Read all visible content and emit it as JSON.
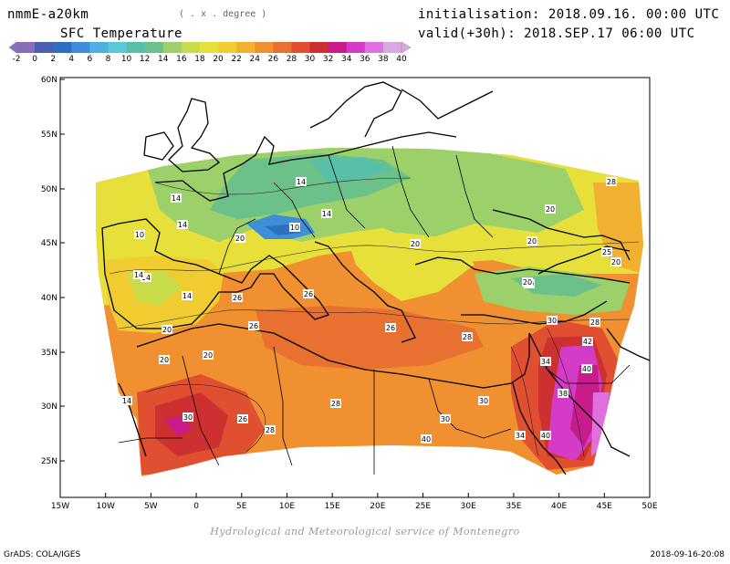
{
  "header": {
    "model": "nmmE-a20km",
    "units": "( . x . degree )",
    "init": "initialisation: 2018.09.16. 00:00 UTC",
    "valid": "valid(+30h): 2018.SEP.17 06:00 UTC",
    "field": "SFC Temperature"
  },
  "colorbar": {
    "labels": [
      "-2",
      "0",
      "2",
      "4",
      "6",
      "8",
      "10",
      "12",
      "14",
      "16",
      "18",
      "20",
      "22",
      "24",
      "26",
      "28",
      "30",
      "32",
      "34",
      "36",
      "38",
      "40"
    ],
    "colors": [
      "#8a6db8",
      "#4a5fb0",
      "#2f6fc0",
      "#3c8fd8",
      "#4db0e0",
      "#5ac8d8",
      "#58bfa8",
      "#6cc08a",
      "#9bd06a",
      "#c8dc4a",
      "#e8e03a",
      "#f0cc30",
      "#f2b030",
      "#f09030",
      "#e87030",
      "#e05030",
      "#cc3030",
      "#c81c8c",
      "#d43cc8",
      "#e070e0",
      "#d8a8e0"
    ]
  },
  "axes": {
    "x_ticks": [
      "15W",
      "10W",
      "5W",
      "0",
      "5E",
      "10E",
      "15E",
      "20E",
      "25E",
      "30E",
      "35E",
      "40E",
      "45E",
      "50E"
    ],
    "y_ticks": [
      "60N",
      "55N",
      "50N",
      "45N",
      "40N",
      "35N",
      "30N",
      "25N"
    ]
  },
  "contour_labels": [
    {
      "text": "14"
    },
    {
      "text": "14"
    },
    {
      "text": "10"
    },
    {
      "text": "20"
    },
    {
      "text": "14"
    },
    {
      "text": "10"
    },
    {
      "text": "14"
    },
    {
      "text": "14"
    },
    {
      "text": "20"
    },
    {
      "text": "20"
    },
    {
      "text": "20"
    },
    {
      "text": "28"
    },
    {
      "text": "20"
    },
    {
      "text": "25"
    },
    {
      "text": "20"
    },
    {
      "text": "14"
    },
    {
      "text": "14"
    },
    {
      "text": "26"
    },
    {
      "text": "26"
    },
    {
      "text": "20"
    },
    {
      "text": "20"
    },
    {
      "text": "20"
    },
    {
      "text": "26"
    },
    {
      "text": "26"
    },
    {
      "text": "28"
    },
    {
      "text": "30"
    },
    {
      "text": "28"
    },
    {
      "text": "42"
    },
    {
      "text": "40"
    },
    {
      "text": "34"
    },
    {
      "text": "20"
    },
    {
      "text": "14"
    },
    {
      "text": "28"
    },
    {
      "text": "30"
    },
    {
      "text": "38"
    },
    {
      "text": "30"
    },
    {
      "text": "26"
    },
    {
      "text": "28"
    },
    {
      "text": "30"
    },
    {
      "text": "34"
    },
    {
      "text": "40"
    },
    {
      "text": "40"
    }
  ],
  "footer": {
    "credit": "Hydrological and Meteorological service of Montenegro",
    "software": "GrADS: COLA/IGES",
    "timestamp": "2018-09-16-20:08"
  }
}
